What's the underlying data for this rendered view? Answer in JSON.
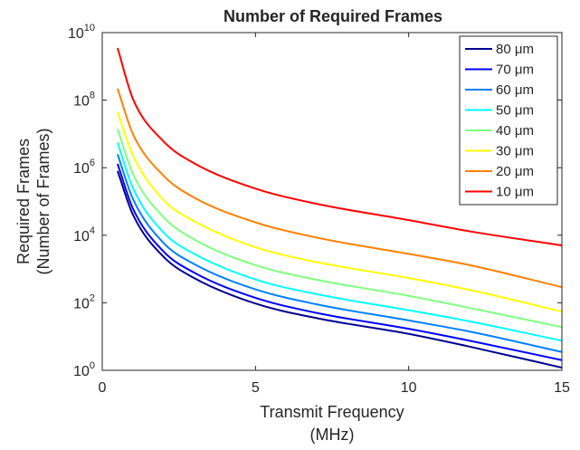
{
  "chart_data": {
    "type": "line",
    "title": "Number of Required Frames",
    "xlabel": [
      "Transmit Frequency",
      "(MHz)"
    ],
    "ylabel": [
      "Required Frames",
      "(Number of Frames)"
    ],
    "xlim": [
      0,
      15
    ],
    "ylim": [
      1,
      10000000000
    ],
    "yscale": "log",
    "x_ticks": [
      {
        "value": 0,
        "label": "0"
      },
      {
        "value": 5,
        "label": "5"
      },
      {
        "value": 10,
        "label": "10"
      },
      {
        "value": 15,
        "label": "15"
      }
    ],
    "y_ticks": [
      {
        "exp": 0,
        "base": "10",
        "sup": "0"
      },
      {
        "exp": 2,
        "base": "10",
        "sup": "2"
      },
      {
        "exp": 4,
        "base": "10",
        "sup": "4"
      },
      {
        "exp": 6,
        "base": "10",
        "sup": "6"
      },
      {
        "exp": 8,
        "base": "10",
        "sup": "8"
      },
      {
        "exp": 10,
        "base": "10",
        "sup": "10"
      }
    ],
    "grid": false,
    "legend_position": "top-right",
    "x": [
      0.5,
      1,
      2,
      3,
      5,
      7,
      10,
      12,
      15
    ],
    "series": [
      {
        "name": "80 μm",
        "color": "#00008f",
        "values": [
          800000,
          41000,
          2300,
          540,
          95,
          35,
          12,
          5,
          1.2
        ]
      },
      {
        "name": "70 μm",
        "color": "#0000ff",
        "values": [
          1300000,
          62000,
          3300,
          780,
          140,
          50,
          17,
          7.5,
          2
        ]
      },
      {
        "name": "60 μm",
        "color": "#0080ff",
        "values": [
          2500000,
          120000,
          5900,
          1400,
          250,
          90,
          30,
          14,
          3.5
        ]
      },
      {
        "name": "50 μm",
        "color": "#00ffff",
        "values": [
          5500000,
          250000,
          12000,
          2800,
          490,
          180,
          60,
          28,
          7.5
        ]
      },
      {
        "name": "40 μm",
        "color": "#80ff80",
        "values": [
          14000000,
          660000,
          34000,
          7500,
          1300,
          480,
          160,
          70,
          19
        ]
      },
      {
        "name": "30 μm",
        "color": "#ffff00",
        "values": [
          45000000,
          2300000,
          110000,
          26000,
          4400,
          1600,
          540,
          240,
          55
        ]
      },
      {
        "name": "20 μm",
        "color": "#ff8000",
        "values": [
          220000000,
          10000000,
          580000,
          130000,
          24000,
          8500,
          2800,
          1300,
          290
        ]
      },
      {
        "name": "10 μm",
        "color": "#ff0000",
        "values": [
          3500000000,
          110000000,
          6000000,
          1350000,
          240000,
          85000,
          28000,
          13000,
          5000
        ]
      }
    ]
  }
}
